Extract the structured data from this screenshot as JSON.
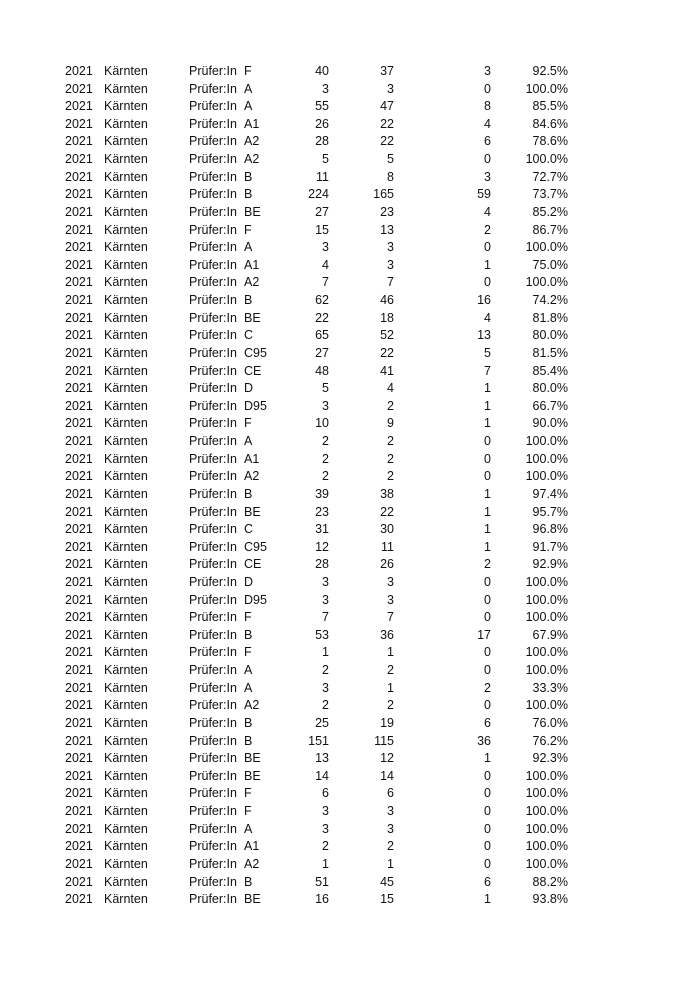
{
  "rows": [
    [
      "2021",
      "Kärnten",
      "Prüfer:In",
      "F",
      "40",
      "37",
      "3",
      "92.5%"
    ],
    [
      "2021",
      "Kärnten",
      "Prüfer:In",
      "A",
      "3",
      "3",
      "0",
      "100.0%"
    ],
    [
      "2021",
      "Kärnten",
      "Prüfer:In",
      "A",
      "55",
      "47",
      "8",
      "85.5%"
    ],
    [
      "2021",
      "Kärnten",
      "Prüfer:In",
      "A1",
      "26",
      "22",
      "4",
      "84.6%"
    ],
    [
      "2021",
      "Kärnten",
      "Prüfer:In",
      "A2",
      "28",
      "22",
      "6",
      "78.6%"
    ],
    [
      "2021",
      "Kärnten",
      "Prüfer:In",
      "A2",
      "5",
      "5",
      "0",
      "100.0%"
    ],
    [
      "2021",
      "Kärnten",
      "Prüfer:In",
      "B",
      "11",
      "8",
      "3",
      "72.7%"
    ],
    [
      "2021",
      "Kärnten",
      "Prüfer:In",
      "B",
      "224",
      "165",
      "59",
      "73.7%"
    ],
    [
      "2021",
      "Kärnten",
      "Prüfer:In",
      "BE",
      "27",
      "23",
      "4",
      "85.2%"
    ],
    [
      "2021",
      "Kärnten",
      "Prüfer:In",
      "F",
      "15",
      "13",
      "2",
      "86.7%"
    ],
    [
      "2021",
      "Kärnten",
      "Prüfer:In",
      "A",
      "3",
      "3",
      "0",
      "100.0%"
    ],
    [
      "2021",
      "Kärnten",
      "Prüfer:In",
      "A1",
      "4",
      "3",
      "1",
      "75.0%"
    ],
    [
      "2021",
      "Kärnten",
      "Prüfer:In",
      "A2",
      "7",
      "7",
      "0",
      "100.0%"
    ],
    [
      "2021",
      "Kärnten",
      "Prüfer:In",
      "B",
      "62",
      "46",
      "16",
      "74.2%"
    ],
    [
      "2021",
      "Kärnten",
      "Prüfer:In",
      "BE",
      "22",
      "18",
      "4",
      "81.8%"
    ],
    [
      "2021",
      "Kärnten",
      "Prüfer:In",
      "C",
      "65",
      "52",
      "13",
      "80.0%"
    ],
    [
      "2021",
      "Kärnten",
      "Prüfer:In",
      "C95",
      "27",
      "22",
      "5",
      "81.5%"
    ],
    [
      "2021",
      "Kärnten",
      "Prüfer:In",
      "CE",
      "48",
      "41",
      "7",
      "85.4%"
    ],
    [
      "2021",
      "Kärnten",
      "Prüfer:In",
      "D",
      "5",
      "4",
      "1",
      "80.0%"
    ],
    [
      "2021",
      "Kärnten",
      "Prüfer:In",
      "D95",
      "3",
      "2",
      "1",
      "66.7%"
    ],
    [
      "2021",
      "Kärnten",
      "Prüfer:In",
      "F",
      "10",
      "9",
      "1",
      "90.0%"
    ],
    [
      "2021",
      "Kärnten",
      "Prüfer:In",
      "A",
      "2",
      "2",
      "0",
      "100.0%"
    ],
    [
      "2021",
      "Kärnten",
      "Prüfer:In",
      "A1",
      "2",
      "2",
      "0",
      "100.0%"
    ],
    [
      "2021",
      "Kärnten",
      "Prüfer:In",
      "A2",
      "2",
      "2",
      "0",
      "100.0%"
    ],
    [
      "2021",
      "Kärnten",
      "Prüfer:In",
      "B",
      "39",
      "38",
      "1",
      "97.4%"
    ],
    [
      "2021",
      "Kärnten",
      "Prüfer:In",
      "BE",
      "23",
      "22",
      "1",
      "95.7%"
    ],
    [
      "2021",
      "Kärnten",
      "Prüfer:In",
      "C",
      "31",
      "30",
      "1",
      "96.8%"
    ],
    [
      "2021",
      "Kärnten",
      "Prüfer:In",
      "C95",
      "12",
      "11",
      "1",
      "91.7%"
    ],
    [
      "2021",
      "Kärnten",
      "Prüfer:In",
      "CE",
      "28",
      "26",
      "2",
      "92.9%"
    ],
    [
      "2021",
      "Kärnten",
      "Prüfer:In",
      "D",
      "3",
      "3",
      "0",
      "100.0%"
    ],
    [
      "2021",
      "Kärnten",
      "Prüfer:In",
      "D95",
      "3",
      "3",
      "0",
      "100.0%"
    ],
    [
      "2021",
      "Kärnten",
      "Prüfer:In",
      "F",
      "7",
      "7",
      "0",
      "100.0%"
    ],
    [
      "2021",
      "Kärnten",
      "Prüfer:In",
      "B",
      "53",
      "36",
      "17",
      "67.9%"
    ],
    [
      "2021",
      "Kärnten",
      "Prüfer:In",
      "F",
      "1",
      "1",
      "0",
      "100.0%"
    ],
    [
      "2021",
      "Kärnten",
      "Prüfer:In",
      "A",
      "2",
      "2",
      "0",
      "100.0%"
    ],
    [
      "2021",
      "Kärnten",
      "Prüfer:In",
      "A",
      "3",
      "1",
      "2",
      "33.3%"
    ],
    [
      "2021",
      "Kärnten",
      "Prüfer:In",
      "A2",
      "2",
      "2",
      "0",
      "100.0%"
    ],
    [
      "2021",
      "Kärnten",
      "Prüfer:In",
      "B",
      "25",
      "19",
      "6",
      "76.0%"
    ],
    [
      "2021",
      "Kärnten",
      "Prüfer:In",
      "B",
      "151",
      "115",
      "36",
      "76.2%"
    ],
    [
      "2021",
      "Kärnten",
      "Prüfer:In",
      "BE",
      "13",
      "12",
      "1",
      "92.3%"
    ],
    [
      "2021",
      "Kärnten",
      "Prüfer:In",
      "BE",
      "14",
      "14",
      "0",
      "100.0%"
    ],
    [
      "2021",
      "Kärnten",
      "Prüfer:In",
      "F",
      "6",
      "6",
      "0",
      "100.0%"
    ],
    [
      "2021",
      "Kärnten",
      "Prüfer:In",
      "F",
      "3",
      "3",
      "0",
      "100.0%"
    ],
    [
      "2021",
      "Kärnten",
      "Prüfer:In",
      "A",
      "3",
      "3",
      "0",
      "100.0%"
    ],
    [
      "2021",
      "Kärnten",
      "Prüfer:In",
      "A1",
      "2",
      "2",
      "0",
      "100.0%"
    ],
    [
      "2021",
      "Kärnten",
      "Prüfer:In",
      "A2",
      "1",
      "1",
      "0",
      "100.0%"
    ],
    [
      "2021",
      "Kärnten",
      "Prüfer:In",
      "B",
      "51",
      "45",
      "6",
      "88.2%"
    ],
    [
      "2021",
      "Kärnten",
      "Prüfer:In",
      "BE",
      "16",
      "15",
      "1",
      "93.8%"
    ]
  ]
}
